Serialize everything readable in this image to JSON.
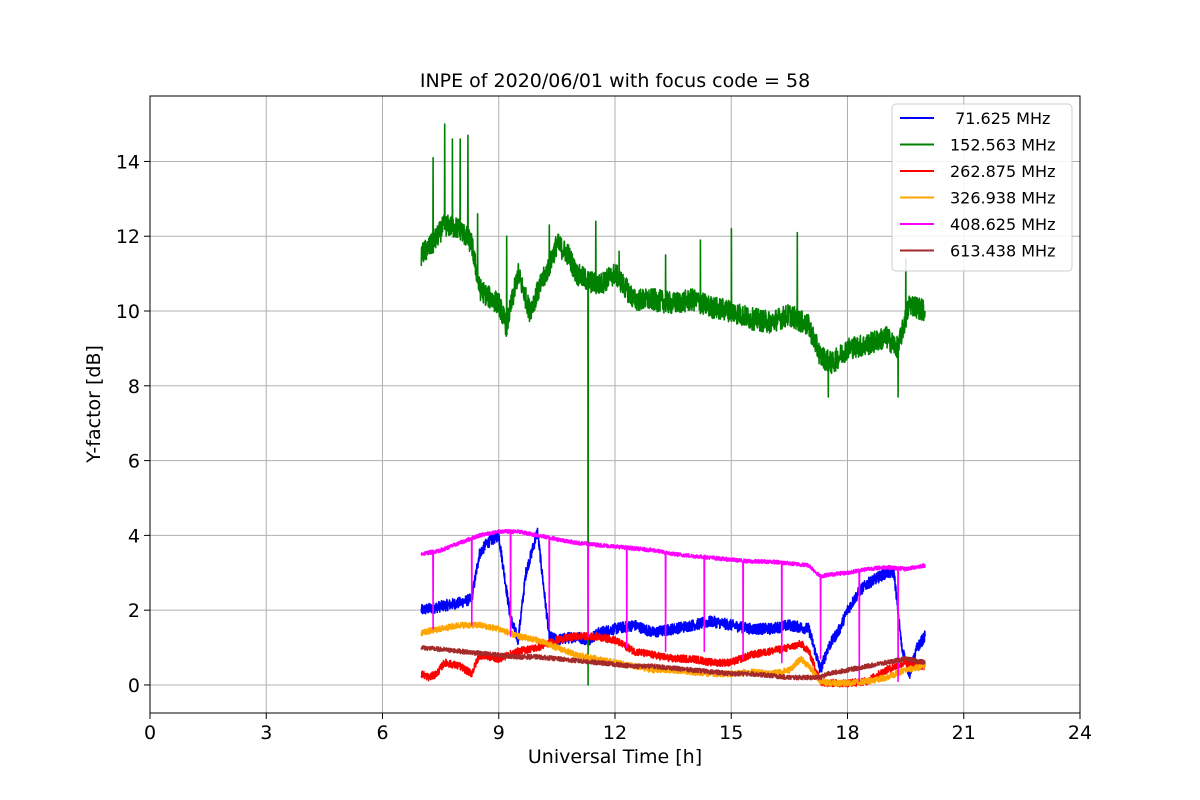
{
  "chart_data": {
    "type": "line",
    "title": "INPE of 2020/06/01 with focus code = 58",
    "xlabel": "Universal Time [h]",
    "ylabel": "Y-factor [dB]",
    "xlim": [
      0,
      24
    ],
    "ylim": [
      -0.75,
      15.75
    ],
    "xticks": [
      0,
      3,
      6,
      9,
      12,
      15,
      18,
      21,
      24
    ],
    "yticks": [
      0,
      2,
      4,
      6,
      8,
      10,
      12,
      14
    ],
    "xtick_labels": [
      "0",
      "3",
      "6",
      "9",
      "12",
      "15",
      "18",
      "21",
      "24"
    ],
    "ytick_labels": [
      "0",
      "2",
      "4",
      "6",
      "8",
      "10",
      "12",
      "14"
    ],
    "grid": true,
    "legend_position": "top-right",
    "series": [
      {
        "name": " 71.625 MHz",
        "color": "#0000ff",
        "noise": 0.15,
        "x": [
          7.0,
          7.5,
          8.0,
          8.3,
          8.5,
          8.7,
          9.0,
          9.3,
          9.5,
          9.7,
          10.0,
          10.3,
          10.5,
          11.0,
          11.3,
          11.6,
          12.0,
          12.5,
          13.0,
          13.5,
          14.0,
          14.5,
          15.0,
          15.5,
          16.0,
          16.5,
          17.0,
          17.3,
          17.5,
          17.8,
          18.0,
          18.3,
          18.5,
          19.0,
          19.2,
          19.4,
          19.6,
          19.8,
          20.0
        ],
        "y": [
          2.0,
          2.1,
          2.2,
          2.3,
          3.5,
          3.8,
          4.0,
          1.8,
          1.2,
          3.0,
          4.1,
          1.3,
          1.2,
          1.3,
          1.2,
          1.4,
          1.5,
          1.6,
          1.4,
          1.5,
          1.6,
          1.7,
          1.6,
          1.5,
          1.5,
          1.6,
          1.5,
          0.4,
          1.0,
          1.5,
          2.0,
          2.5,
          2.7,
          3.0,
          3.0,
          1.0,
          0.3,
          1.0,
          1.3
        ]
      },
      {
        "name": "152.563 MHz",
        "color": "#008000",
        "noise": 0.3,
        "x": [
          7.0,
          7.3,
          7.6,
          8.0,
          8.3,
          8.5,
          8.7,
          9.0,
          9.2,
          9.5,
          9.8,
          10.0,
          10.3,
          10.5,
          10.8,
          11.0,
          11.3,
          11.6,
          12.0,
          12.5,
          13.0,
          13.5,
          14.0,
          14.5,
          15.0,
          15.5,
          16.0,
          16.5,
          17.0,
          17.3,
          17.6,
          18.0,
          18.5,
          19.0,
          19.3,
          19.6,
          20.0
        ],
        "y": [
          11.5,
          11.8,
          12.3,
          12.2,
          11.8,
          10.6,
          10.4,
          10.2,
          9.6,
          11.0,
          10.0,
          10.5,
          11.2,
          11.8,
          11.5,
          11.0,
          10.8,
          10.7,
          11.0,
          10.3,
          10.3,
          10.2,
          10.3,
          10.1,
          10.0,
          9.8,
          9.7,
          9.9,
          9.6,
          8.8,
          8.6,
          9.0,
          9.1,
          9.3,
          9.0,
          10.2,
          10.0
        ],
        "spikes": [
          {
            "x": 7.3,
            "y": 14.1
          },
          {
            "x": 7.6,
            "y": 15.0
          },
          {
            "x": 7.8,
            "y": 14.6
          },
          {
            "x": 8.0,
            "y": 14.6
          },
          {
            "x": 8.2,
            "y": 14.7
          },
          {
            "x": 8.45,
            "y": 12.6
          },
          {
            "x": 9.2,
            "y": 12.0
          },
          {
            "x": 10.3,
            "y": 12.3
          },
          {
            "x": 11.3,
            "y": 0.0
          },
          {
            "x": 11.5,
            "y": 12.4
          },
          {
            "x": 12.1,
            "y": 11.6
          },
          {
            "x": 13.3,
            "y": 11.5
          },
          {
            "x": 14.2,
            "y": 11.9
          },
          {
            "x": 15.0,
            "y": 12.2
          },
          {
            "x": 16.7,
            "y": 12.1
          },
          {
            "x": 17.5,
            "y": 7.7
          },
          {
            "x": 19.3,
            "y": 7.7
          },
          {
            "x": 19.5,
            "y": 11.4
          }
        ]
      },
      {
        "name": "262.875 MHz",
        "color": "#ff0000",
        "noise": 0.1,
        "x": [
          7.0,
          7.2,
          7.4,
          7.6,
          8.0,
          8.3,
          8.5,
          9.0,
          9.5,
          10.0,
          10.5,
          11.0,
          11.5,
          12.0,
          12.5,
          13.0,
          13.5,
          14.0,
          14.5,
          15.0,
          15.5,
          16.0,
          16.5,
          16.8,
          17.0,
          17.3,
          17.5,
          18.0,
          18.5,
          19.0,
          19.5,
          20.0
        ],
        "y": [
          0.3,
          0.2,
          0.3,
          0.6,
          0.5,
          0.3,
          0.8,
          0.7,
          0.9,
          1.0,
          1.2,
          1.3,
          1.3,
          1.2,
          0.9,
          0.8,
          0.7,
          0.7,
          0.6,
          0.6,
          0.8,
          0.9,
          1.0,
          1.1,
          0.9,
          0.1,
          0.05,
          0.05,
          0.1,
          0.4,
          0.6,
          0.5
        ]
      },
      {
        "name": "326.938 MHz",
        "color": "#ffa500",
        "noise": 0.08,
        "x": [
          7.0,
          7.5,
          8.0,
          8.5,
          9.0,
          9.5,
          10.0,
          10.5,
          11.0,
          11.5,
          12.0,
          12.5,
          13.0,
          13.5,
          14.0,
          14.5,
          15.0,
          15.5,
          16.0,
          16.5,
          16.8,
          17.0,
          17.3,
          17.5,
          18.0,
          18.5,
          19.0,
          19.5,
          20.0
        ],
        "y": [
          1.4,
          1.5,
          1.6,
          1.6,
          1.5,
          1.3,
          1.2,
          1.0,
          0.8,
          0.7,
          0.6,
          0.5,
          0.4,
          0.4,
          0.35,
          0.3,
          0.3,
          0.35,
          0.3,
          0.4,
          0.7,
          0.5,
          0.1,
          0.05,
          0.05,
          0.1,
          0.2,
          0.4,
          0.5
        ]
      },
      {
        "name": "408.625 MHz",
        "color": "#ff00ff",
        "noise": 0.05,
        "x": [
          7.0,
          7.5,
          8.0,
          8.5,
          9.0,
          9.5,
          10.0,
          10.5,
          11.0,
          11.5,
          12.0,
          12.5,
          13.0,
          13.5,
          14.0,
          14.5,
          15.0,
          15.5,
          16.0,
          16.5,
          17.0,
          17.3,
          17.5,
          18.0,
          18.5,
          19.0,
          19.5,
          20.0
        ],
        "y": [
          3.5,
          3.6,
          3.8,
          4.0,
          4.1,
          4.1,
          4.0,
          3.9,
          3.8,
          3.75,
          3.7,
          3.65,
          3.6,
          3.5,
          3.45,
          3.4,
          3.35,
          3.3,
          3.3,
          3.25,
          3.2,
          2.9,
          2.95,
          3.0,
          3.1,
          3.15,
          3.1,
          3.2
        ],
        "spikes": [
          {
            "x": 7.3,
            "y": 1.5
          },
          {
            "x": 8.3,
            "y": 1.6
          },
          {
            "x": 9.3,
            "y": 1.3
          },
          {
            "x": 10.3,
            "y": 1.5
          },
          {
            "x": 11.3,
            "y": 1.3
          },
          {
            "x": 12.3,
            "y": 1.0
          },
          {
            "x": 13.3,
            "y": 0.9
          },
          {
            "x": 14.3,
            "y": 0.9
          },
          {
            "x": 15.3,
            "y": 0.7
          },
          {
            "x": 16.3,
            "y": 0.6
          },
          {
            "x": 17.3,
            "y": 0.7
          },
          {
            "x": 18.3,
            "y": 0.1
          },
          {
            "x": 19.3,
            "y": 0.1
          }
        ]
      },
      {
        "name": "613.438 MHz",
        "color": "#a52a2a",
        "noise": 0.06,
        "x": [
          7.0,
          7.5,
          8.0,
          8.5,
          9.0,
          9.5,
          10.0,
          10.5,
          11.0,
          11.5,
          12.0,
          12.5,
          13.0,
          13.5,
          14.0,
          14.5,
          15.0,
          15.5,
          16.0,
          16.5,
          17.0,
          17.3,
          17.5,
          18.0,
          18.5,
          19.0,
          19.5,
          20.0
        ],
        "y": [
          1.0,
          0.95,
          0.9,
          0.85,
          0.8,
          0.75,
          0.75,
          0.7,
          0.65,
          0.6,
          0.55,
          0.5,
          0.5,
          0.45,
          0.4,
          0.35,
          0.3,
          0.3,
          0.25,
          0.2,
          0.2,
          0.2,
          0.3,
          0.4,
          0.5,
          0.6,
          0.7,
          0.6
        ]
      }
    ]
  }
}
